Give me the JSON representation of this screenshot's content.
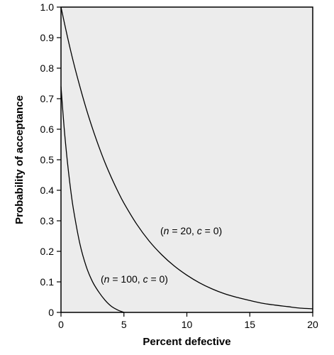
{
  "chart_data": {
    "type": "line",
    "xlabel": "Percent defective",
    "ylabel": "Probability of acceptance",
    "xlim": [
      0,
      20
    ],
    "ylim": [
      0,
      1.0
    ],
    "xticks": [
      "0",
      "5",
      "10",
      "15",
      "20"
    ],
    "yticks": [
      "0",
      "0.1",
      "0.2",
      "0.3",
      "0.4",
      "0.5",
      "0.6",
      "0.7",
      "0.8",
      "0.9",
      "1.0"
    ],
    "grid": false,
    "background_color": "#ececec",
    "line_color": "#000000",
    "series": [
      {
        "label": "(n = 20, c = 0)",
        "x": [
          0,
          0.5,
          1,
          1.5,
          2,
          2.5,
          3,
          3.5,
          4,
          4.5,
          5,
          6,
          7,
          8,
          9,
          10,
          11,
          12,
          13,
          14,
          15,
          16,
          17,
          18,
          19,
          20
        ],
        "y": [
          1.0,
          0.905,
          0.818,
          0.74,
          0.668,
          0.603,
          0.544,
          0.49,
          0.442,
          0.398,
          0.358,
          0.29,
          0.234,
          0.189,
          0.152,
          0.122,
          0.097,
          0.077,
          0.061,
          0.049,
          0.039,
          0.03,
          0.024,
          0.019,
          0.014,
          0.012
        ]
      },
      {
        "label": "(n = 100, c = 0)",
        "x": [
          0,
          0.25,
          0.5,
          0.75,
          1,
          1.5,
          2,
          2.5,
          3,
          3.5,
          4,
          4.5,
          5
        ],
        "y": [
          0.74,
          0.605,
          0.497,
          0.408,
          0.335,
          0.225,
          0.151,
          0.101,
          0.067,
          0.04,
          0.02,
          0.008,
          0.0
        ]
      }
    ]
  }
}
